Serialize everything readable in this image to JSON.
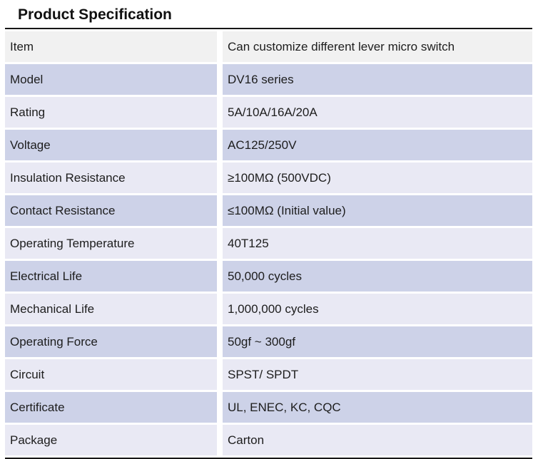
{
  "page": {
    "title": "Product Specification"
  },
  "table": {
    "columns": [
      "label",
      "value"
    ],
    "rows": [
      {
        "label": "Item",
        "value": "Can customize different lever micro switch"
      },
      {
        "label": "Model",
        "value": "DV16 series"
      },
      {
        "label": "Rating",
        "value": "5A/10A/16A/20A"
      },
      {
        "label": "Voltage",
        "value": "AC125/250V"
      },
      {
        "label": "Insulation Resistance",
        "value": "≥100MΩ (500VDC)"
      },
      {
        "label": "Contact Resistance",
        "value": "≤100MΩ (Initial value)"
      },
      {
        "label": "Operating Temperature",
        "value": "40T125"
      },
      {
        "label": "Electrical Life",
        "value": "50,000 cycles"
      },
      {
        "label": "Mechanical Life",
        "value": "1,000,000 cycles"
      },
      {
        "label": "Operating Force",
        "value": "50gf ~ 300gf"
      },
      {
        "label": "Circuit",
        "value": "SPST/ SPDT"
      },
      {
        "label": "Certificate",
        "value": "UL, ENEC, KC, CQC"
      },
      {
        "label": "Package",
        "value": "Carton"
      }
    ],
    "colors": {
      "row_gray": "#f1f1f1",
      "row_lavender": "#cdd2e8",
      "row_pale": "#e9e9f4",
      "border": "#161616",
      "text": "#1d1d1d"
    }
  }
}
